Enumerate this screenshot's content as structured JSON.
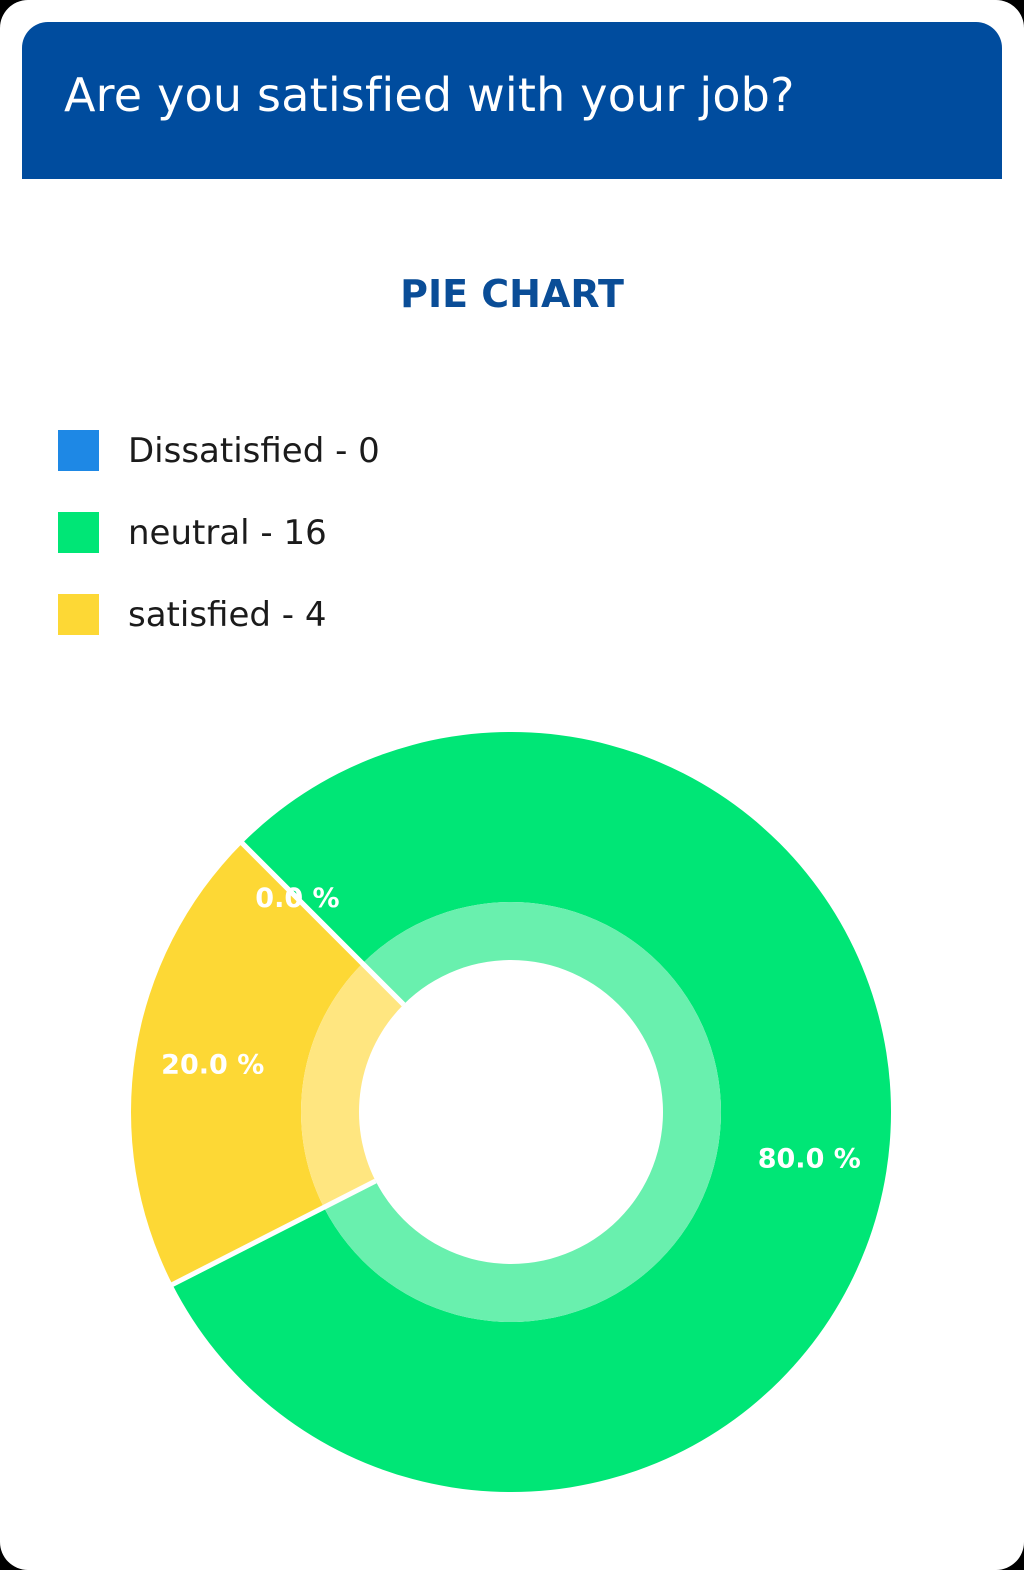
{
  "header": {
    "question": "Are you satisfied with your job?"
  },
  "chart_heading": "PIE CHART",
  "colors": {
    "header_bg": "#004c9e",
    "heading_text": "#0a4d97",
    "dissatisfied": "#1e88e5",
    "neutral": "#00e676",
    "satisfied": "#fdd835",
    "neutral_inner": "#69f0ae",
    "satisfied_inner": "#ffe680"
  },
  "legend": [
    {
      "label": "Dissatisfied - 0",
      "color": "#1e88e5"
    },
    {
      "label": "neutral - 16",
      "color": "#00e676"
    },
    {
      "label": "satisfied - 4",
      "color": "#fdd835"
    }
  ],
  "chart_data": {
    "type": "pie",
    "categories": [
      "Dissatisfied",
      "neutral",
      "satisfied"
    ],
    "values": [
      0,
      16,
      4
    ],
    "percent_labels": [
      "0.0 %",
      "80.0 %",
      "20.0 %"
    ],
    "title": "PIE CHART",
    "legend_position": "top-left",
    "donut": true
  }
}
